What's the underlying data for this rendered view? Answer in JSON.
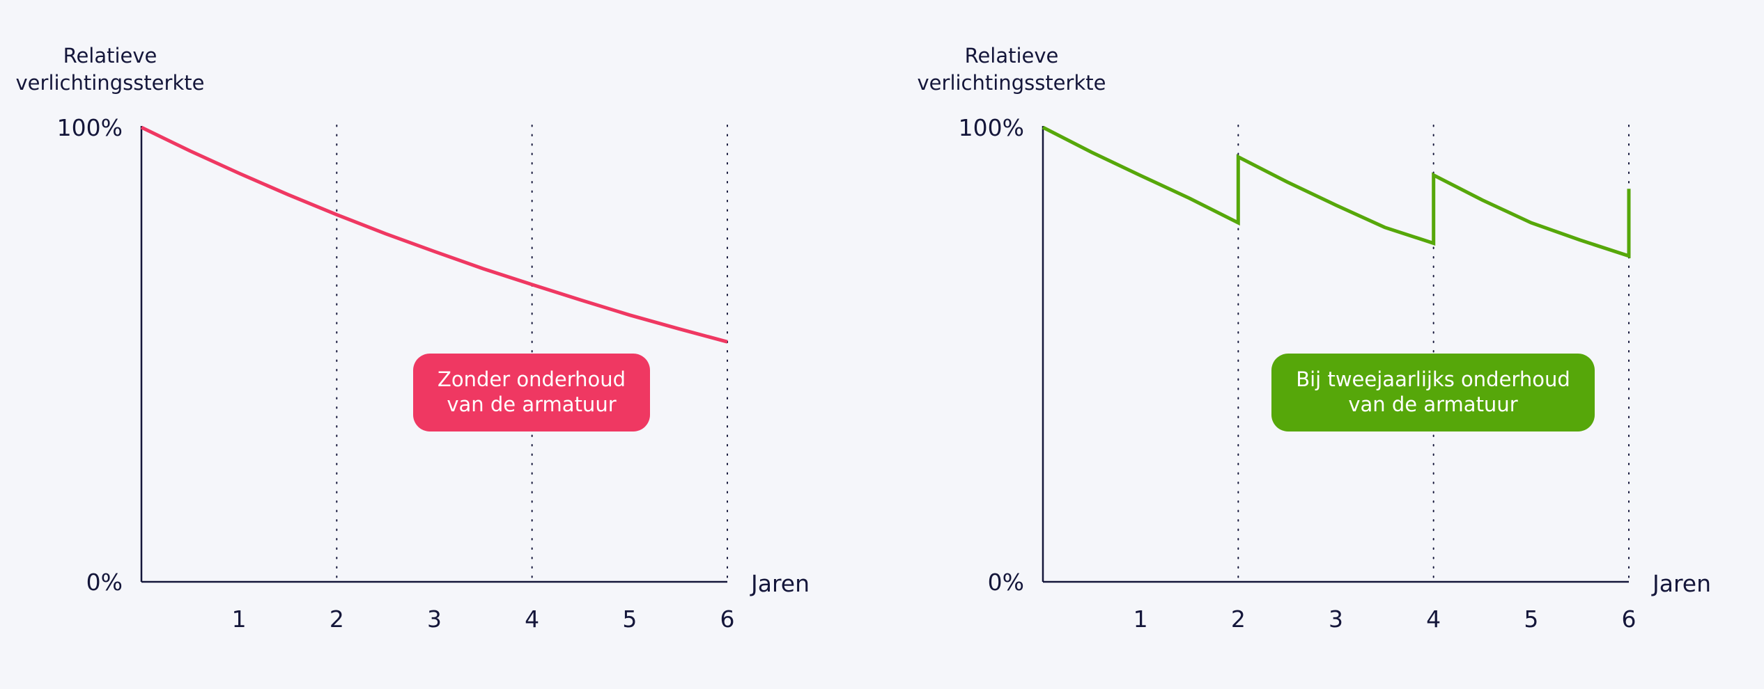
{
  "chart_data": [
    {
      "type": "line",
      "ylabel": [
        "Relatieve",
        "verlichtingssterkte"
      ],
      "xlabel": "Jaren",
      "y_ticks": [
        "100%",
        "0%"
      ],
      "x_ticks": [
        "1",
        "2",
        "3",
        "4",
        "5",
        "6"
      ],
      "xlim": [
        0,
        6
      ],
      "ylim": [
        0,
        100
      ],
      "gridlines_x": [
        2,
        4,
        6
      ],
      "series": [
        {
          "color": "#ef3862",
          "x": [
            0,
            0.5,
            1,
            1.5,
            2,
            2.5,
            3,
            3.5,
            4,
            4.5,
            5,
            5.5,
            6
          ],
          "y": [
            100,
            94.8,
            89.9,
            85.2,
            80.8,
            76.6,
            72.7,
            68.9,
            65.4,
            62.0,
            58.7,
            55.7,
            52.8
          ]
        }
      ],
      "callout": {
        "lines": [
          "Zonder onderhoud",
          "van de armatuur"
        ],
        "color": "#ef3862"
      }
    },
    {
      "type": "line",
      "ylabel": [
        "Relatieve",
        "verlichtingssterkte"
      ],
      "xlabel": "Jaren",
      "y_ticks": [
        "100%",
        "0%"
      ],
      "x_ticks": [
        "1",
        "2",
        "3",
        "4",
        "5",
        "6"
      ],
      "xlim": [
        0,
        6
      ],
      "ylim": [
        0,
        100
      ],
      "gridlines_x": [
        2,
        4,
        6
      ],
      "series": [
        {
          "color": "#56a70a",
          "x": [
            0,
            0.5,
            1,
            1.5,
            2,
            2,
            2.5,
            3,
            3.5,
            4,
            4,
            4.5,
            5,
            5.5,
            6,
            6
          ],
          "y": [
            100,
            94.5,
            89.4,
            84.4,
            79.0,
            93.5,
            88.0,
            82.9,
            78.0,
            74.5,
            89.5,
            84.0,
            79.0,
            75.2,
            71.7,
            86.5
          ]
        }
      ],
      "callout": {
        "lines": [
          "Bij tweejaarlijks onderhoud",
          "van de armatuur"
        ],
        "color": "#56a70a"
      }
    }
  ]
}
